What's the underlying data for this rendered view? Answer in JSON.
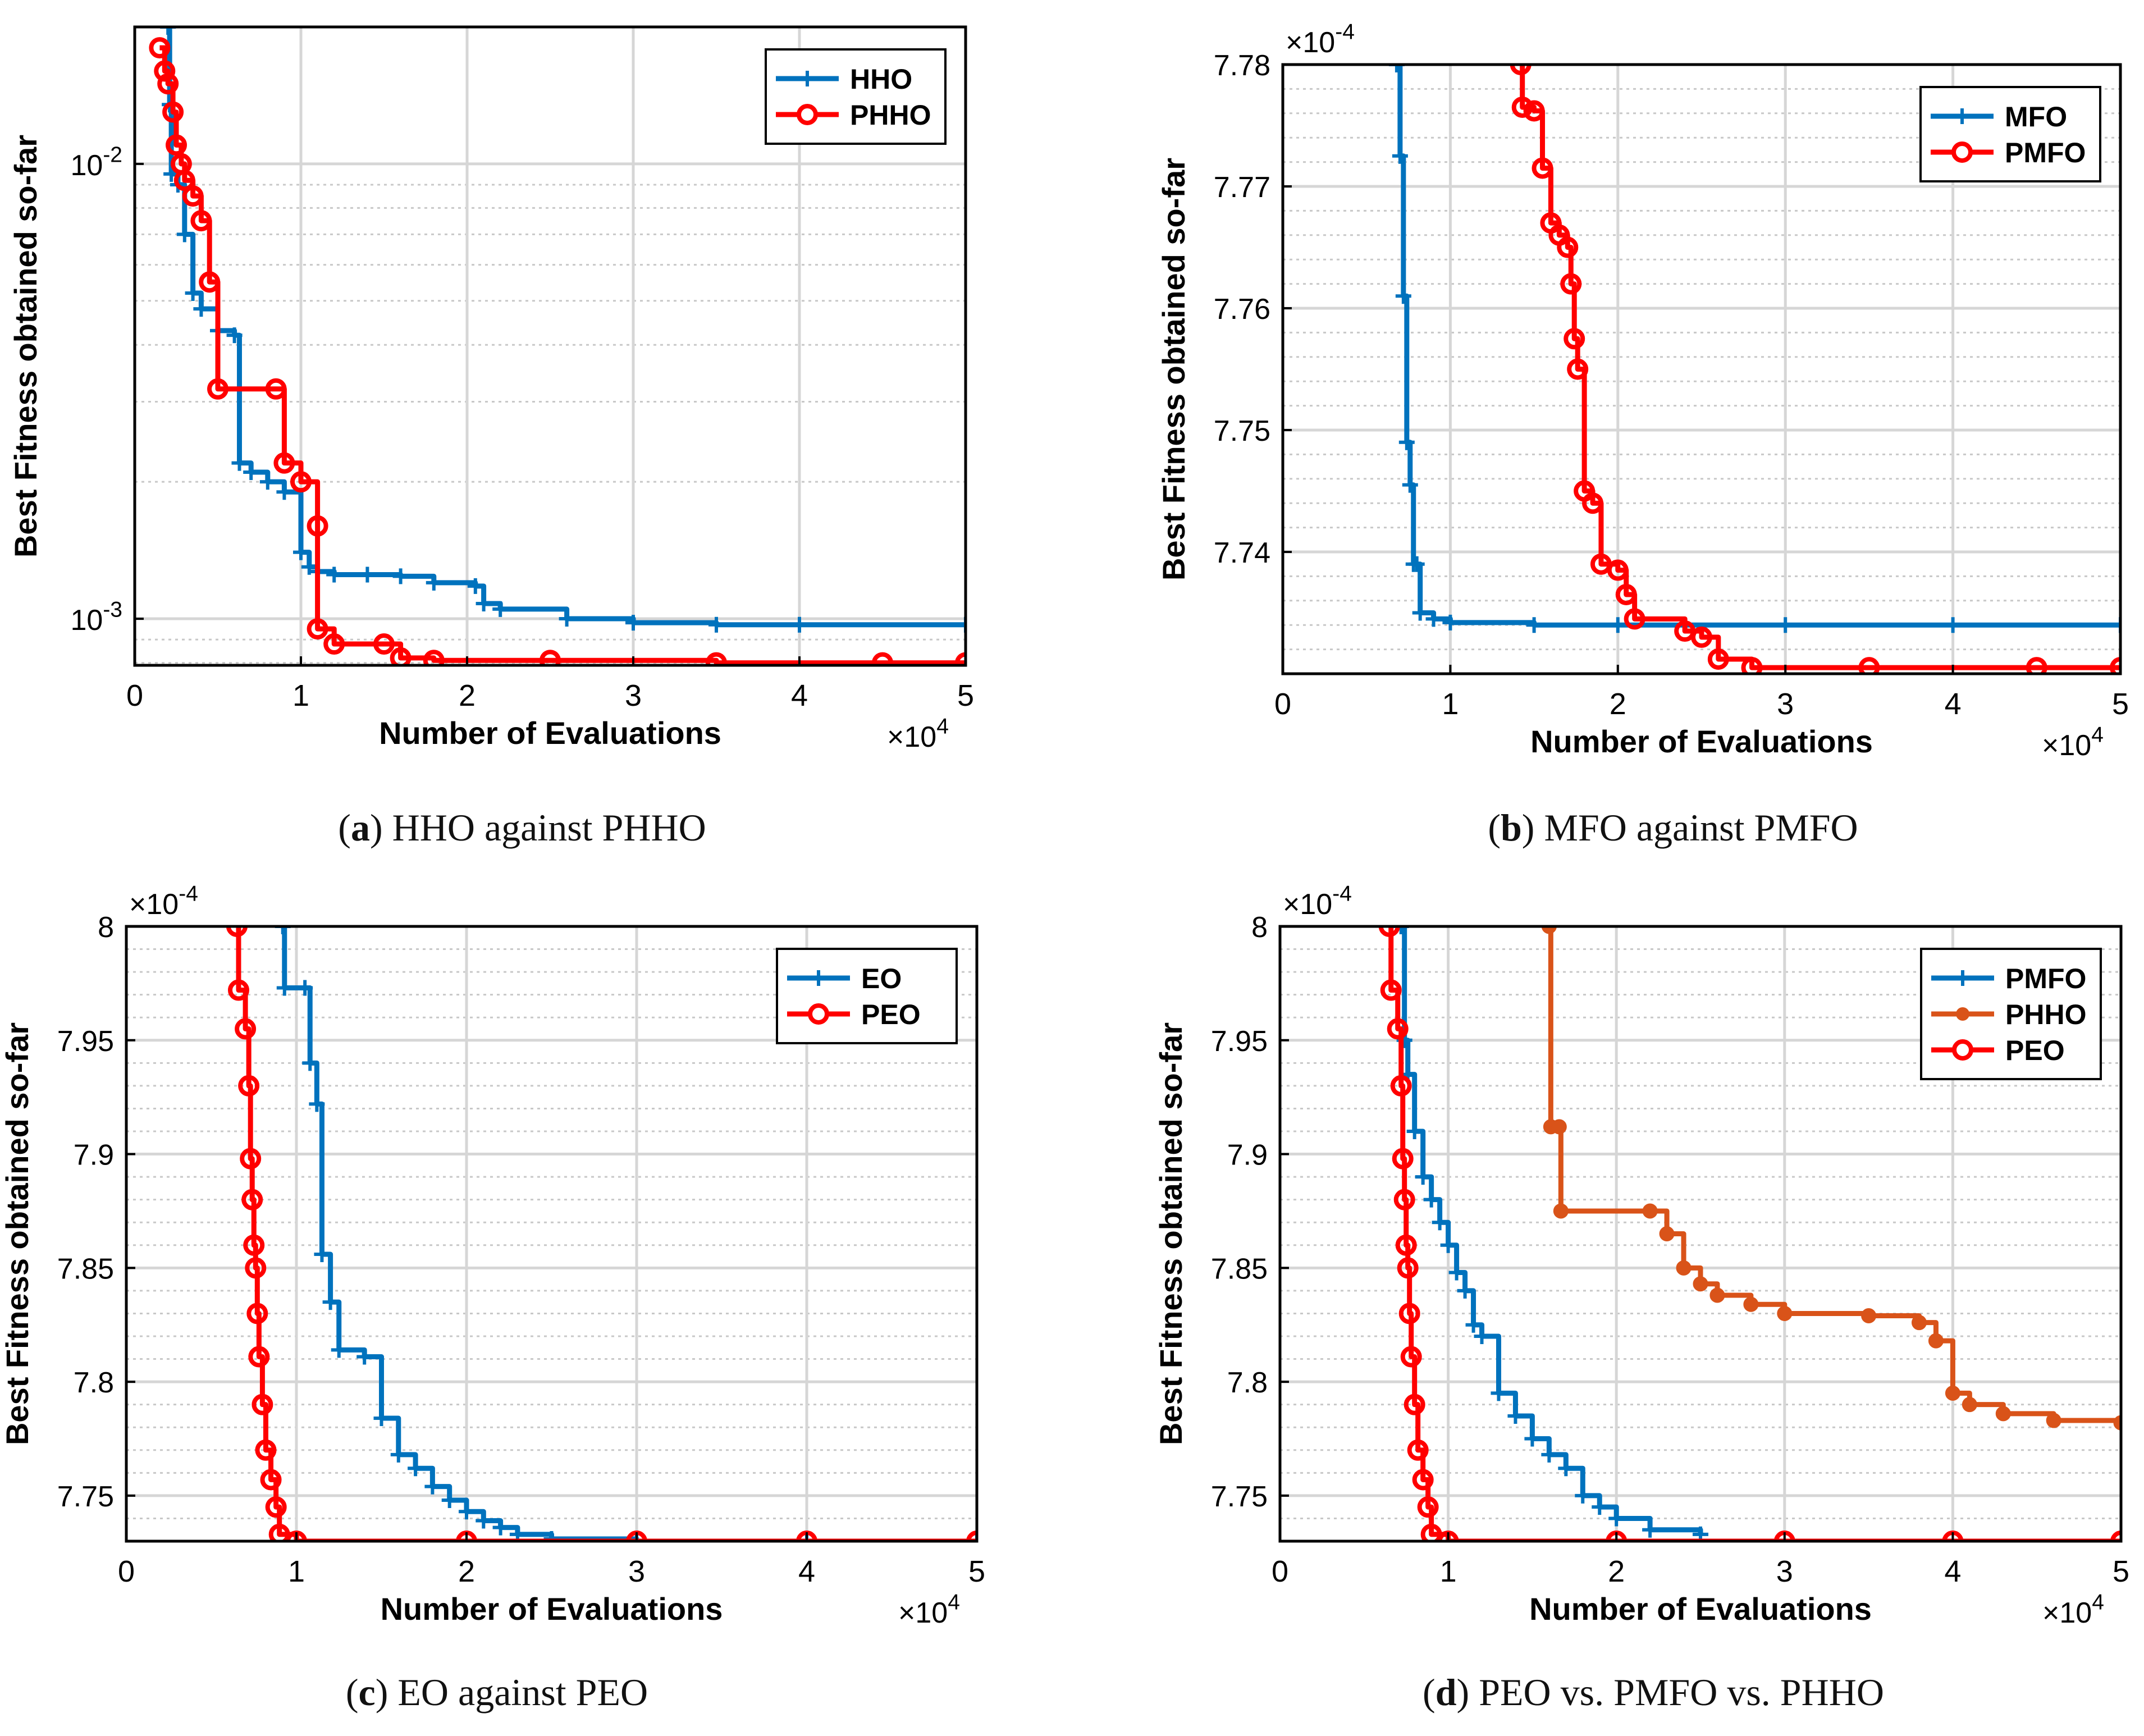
{
  "colors": {
    "blue": "#0072bd",
    "red": "#ff0000",
    "orange": "#d95319",
    "grid": "#d0d0d0",
    "axis": "#000000"
  },
  "chart_data": [
    {
      "id": "a",
      "type": "line",
      "caption_letter": "a",
      "caption_text": "HHO against PHHO",
      "xlabel": "Number of Evaluations",
      "ylabel": "Best Fitness obtained so-far",
      "x_exponent": "×10",
      "x_exponent_power": "4",
      "xlim": [
        0,
        5
      ],
      "ylim": [
        0.00079,
        0.02
      ],
      "yscale": "log",
      "xticks": [
        0,
        1,
        2,
        3,
        4,
        5
      ],
      "xtick_labels": [
        "0",
        "1",
        "2",
        "3",
        "4",
        "5"
      ],
      "yticks_log": [
        {
          "value": 0.001,
          "base": "10",
          "power": "-3"
        },
        {
          "value": 0.01,
          "base": "10",
          "power": "-2"
        }
      ],
      "legend_position": "top-right",
      "series": [
        {
          "name": "HHO",
          "color": "blue",
          "marker": "plus",
          "x": [
            0.2,
            0.21,
            0.22,
            0.26,
            0.3,
            0.35,
            0.4,
            0.5,
            0.6,
            0.63,
            0.7,
            0.8,
            0.9,
            1.0,
            1.05,
            1.1,
            1.2,
            1.4,
            1.6,
            1.8,
            2.05,
            2.1,
            2.2,
            2.6,
            3.0,
            3.5,
            4.0,
            5.0
          ],
          "y": [
            0.02,
            0.0135,
            0.0095,
            0.009,
            0.007,
            0.0052,
            0.0048,
            0.0043,
            0.0042,
            0.0022,
            0.0021,
            0.002,
            0.0019,
            0.0014,
            0.0013,
            0.00127,
            0.00125,
            0.00125,
            0.00124,
            0.0012,
            0.00118,
            0.00108,
            0.00105,
            0.001,
            0.00098,
            0.00097,
            0.00097,
            0.00097
          ]
        },
        {
          "name": "PHHO",
          "color": "red",
          "marker": "circle",
          "x": [
            0.15,
            0.18,
            0.2,
            0.23,
            0.25,
            0.28,
            0.3,
            0.35,
            0.4,
            0.45,
            0.5,
            0.85,
            0.9,
            1.0,
            1.1,
            1.1,
            1.2,
            1.5,
            1.6,
            1.8,
            2.5,
            3.5,
            4.5,
            5.0
          ],
          "y": [
            0.018,
            0.016,
            0.015,
            0.013,
            0.011,
            0.01,
            0.0092,
            0.0085,
            0.0075,
            0.0055,
            0.0032,
            0.0032,
            0.0022,
            0.002,
            0.0016,
            0.00095,
            0.00088,
            0.00088,
            0.00082,
            0.00081,
            0.00081,
            0.0008,
            0.0008,
            0.0008
          ]
        }
      ]
    },
    {
      "id": "b",
      "type": "line",
      "caption_letter": "b",
      "caption_text": "MFO against PMFO",
      "xlabel": "Number of Evaluations",
      "ylabel": "Best Fitness obtained so-far",
      "x_exponent": "×10",
      "x_exponent_power": "4",
      "y_exponent": "×10",
      "y_exponent_power": "-4",
      "xlim": [
        0,
        5
      ],
      "ylim": [
        7.73,
        7.78
      ],
      "xticks": [
        0,
        1,
        2,
        3,
        4,
        5
      ],
      "xtick_labels": [
        "0",
        "1",
        "2",
        "3",
        "4",
        "5"
      ],
      "yticks": [
        7.74,
        7.75,
        7.76,
        7.77,
        7.78
      ],
      "ytick_labels": [
        "7.74",
        "7.75",
        "7.76",
        "7.77",
        "7.78"
      ],
      "legend_position": "top-right",
      "series": [
        {
          "name": "MFO",
          "color": "blue",
          "marker": "plus",
          "x": [
            0.68,
            0.7,
            0.72,
            0.74,
            0.76,
            0.78,
            0.8,
            0.82,
            0.9,
            1.0,
            1.5,
            2.0,
            3.0,
            4.0,
            5.0
          ],
          "y": [
            7.78,
            7.7725,
            7.761,
            7.749,
            7.7455,
            7.739,
            7.739,
            7.735,
            7.7345,
            7.7342,
            7.734,
            7.734,
            7.734,
            7.734,
            7.734
          ]
        },
        {
          "name": "PMFO",
          "color": "red",
          "marker": "circle",
          "x": [
            1.42,
            1.43,
            1.5,
            1.55,
            1.6,
            1.65,
            1.7,
            1.72,
            1.74,
            1.76,
            1.8,
            1.85,
            1.9,
            2.0,
            2.05,
            2.1,
            2.4,
            2.5,
            2.6,
            2.8,
            3.5,
            4.5,
            5.0
          ],
          "y": [
            7.78,
            7.7765,
            7.7762,
            7.7715,
            7.767,
            7.766,
            7.765,
            7.762,
            7.7575,
            7.755,
            7.745,
            7.744,
            7.739,
            7.7385,
            7.7365,
            7.7345,
            7.7335,
            7.733,
            7.7312,
            7.7305,
            7.7305,
            7.7305,
            7.7305
          ]
        }
      ]
    },
    {
      "id": "c",
      "type": "line",
      "caption_letter": "c",
      "caption_text": "EO against PEO",
      "xlabel": "Number of Evaluations",
      "ylabel": "Best Fitness obtained so-far",
      "x_exponent": "×10",
      "x_exponent_power": "4",
      "y_exponent": "×10",
      "y_exponent_power": "-4",
      "xlim": [
        0,
        5
      ],
      "ylim": [
        7.73,
        8.0
      ],
      "xticks": [
        0,
        1,
        2,
        3,
        4,
        5
      ],
      "xtick_labels": [
        "0",
        "1",
        "2",
        "3",
        "4",
        "5"
      ],
      "yticks": [
        7.75,
        7.8,
        7.85,
        7.9,
        7.95,
        8.0
      ],
      "ytick_labels": [
        "7.75",
        "7.8",
        "7.85",
        "7.9",
        "7.95",
        "8"
      ],
      "legend_position": "top-right",
      "series": [
        {
          "name": "EO",
          "color": "blue",
          "marker": "plus",
          "x": [
            0.92,
            0.93,
            1.05,
            1.08,
            1.12,
            1.15,
            1.2,
            1.25,
            1.4,
            1.5,
            1.6,
            1.7,
            1.8,
            1.9,
            2.0,
            2.1,
            2.2,
            2.3,
            2.5,
            3.0,
            4.0,
            5.0
          ],
          "y": [
            8.0,
            7.973,
            7.973,
            7.94,
            7.922,
            7.856,
            7.835,
            7.814,
            7.811,
            7.784,
            7.768,
            7.762,
            7.754,
            7.748,
            7.743,
            7.739,
            7.736,
            7.733,
            7.731,
            7.73,
            7.73,
            7.73
          ]
        },
        {
          "name": "PEO",
          "color": "red",
          "marker": "circle",
          "x": [
            0.65,
            0.66,
            0.7,
            0.72,
            0.73,
            0.74,
            0.75,
            0.76,
            0.77,
            0.78,
            0.8,
            0.82,
            0.85,
            0.88,
            0.9,
            1.0,
            2.0,
            3.0,
            4.0,
            5.0
          ],
          "y": [
            8.0,
            7.972,
            7.955,
            7.93,
            7.898,
            7.88,
            7.86,
            7.85,
            7.83,
            7.811,
            7.79,
            7.77,
            7.757,
            7.745,
            7.733,
            7.73,
            7.73,
            7.73,
            7.73,
            7.73
          ]
        }
      ]
    },
    {
      "id": "d",
      "type": "line",
      "caption_letter": "d",
      "caption_text": "PEO vs. PMFO vs. PHHO",
      "xlabel": "Number of Evaluations",
      "ylabel": "Best Fitness obtained so-far",
      "x_exponent": "×10",
      "x_exponent_power": "4",
      "y_exponent": "×10",
      "y_exponent_power": "-4",
      "xlim": [
        0,
        5
      ],
      "ylim": [
        7.73,
        8.0
      ],
      "xticks": [
        0,
        1,
        2,
        3,
        4,
        5
      ],
      "xtick_labels": [
        "0",
        "1",
        "2",
        "3",
        "4",
        "5"
      ],
      "yticks": [
        7.75,
        7.8,
        7.85,
        7.9,
        7.95,
        8.0
      ],
      "ytick_labels": [
        "7.75",
        "7.8",
        "7.85",
        "7.9",
        "7.95",
        "8"
      ],
      "legend_position": "top-right",
      "series": [
        {
          "name": "PMFO",
          "color": "blue",
          "marker": "plus",
          "x": [
            0.72,
            0.74,
            0.76,
            0.8,
            0.85,
            0.9,
            0.95,
            1.0,
            1.05,
            1.1,
            1.15,
            1.2,
            1.3,
            1.4,
            1.5,
            1.6,
            1.7,
            1.8,
            1.9,
            2.0,
            2.2,
            2.5
          ],
          "y": [
            8.0,
            7.95,
            7.935,
            7.91,
            7.89,
            7.88,
            7.87,
            7.86,
            7.848,
            7.84,
            7.825,
            7.82,
            7.795,
            7.785,
            7.775,
            7.768,
            7.762,
            7.75,
            7.745,
            7.74,
            7.735,
            7.733
          ]
        },
        {
          "name": "PHHO",
          "color": "orange",
          "marker": "dot",
          "x": [
            1.6,
            1.61,
            1.66,
            1.67,
            2.2,
            2.3,
            2.4,
            2.5,
            2.6,
            2.8,
            3.0,
            3.5,
            3.8,
            3.9,
            4.0,
            4.1,
            4.3,
            4.6,
            5.0
          ],
          "y": [
            8.0,
            7.912,
            7.912,
            7.875,
            7.875,
            7.865,
            7.85,
            7.843,
            7.838,
            7.834,
            7.83,
            7.829,
            7.826,
            7.818,
            7.795,
            7.79,
            7.786,
            7.783,
            7.782
          ]
        },
        {
          "name": "PEO",
          "color": "red",
          "marker": "circle",
          "x": [
            0.65,
            0.66,
            0.7,
            0.72,
            0.73,
            0.74,
            0.75,
            0.76,
            0.77,
            0.78,
            0.8,
            0.82,
            0.85,
            0.88,
            0.9,
            1.0,
            2.0,
            3.0,
            4.0,
            5.0
          ],
          "y": [
            8.0,
            7.972,
            7.955,
            7.93,
            7.898,
            7.88,
            7.86,
            7.85,
            7.83,
            7.811,
            7.79,
            7.77,
            7.757,
            7.745,
            7.733,
            7.73,
            7.73,
            7.73,
            7.73,
            7.73
          ]
        }
      ]
    }
  ]
}
